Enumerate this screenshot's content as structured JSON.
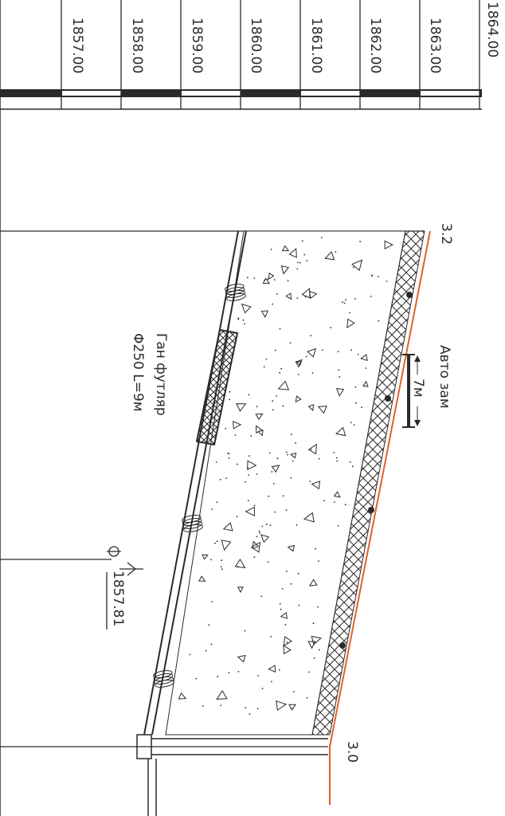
{
  "elevation_scale": {
    "labels": [
      "1857.00",
      "1858.00",
      "1859.00",
      "1860.00",
      "1861.00",
      "1862.00",
      "1863.00",
      "1864.00"
    ]
  },
  "stations": {
    "top": "3.2",
    "bottom": "3.0"
  },
  "road": {
    "label": "Авто зам",
    "width_label": "7м"
  },
  "casing": {
    "line1": "Ган футляр",
    "line2": "Φ250 L=9м"
  },
  "invert_mark": {
    "value": "1857.81"
  },
  "colors": {
    "line": "#2a2a2a",
    "ground_line": "#e0622a",
    "background": "#ffffff"
  }
}
